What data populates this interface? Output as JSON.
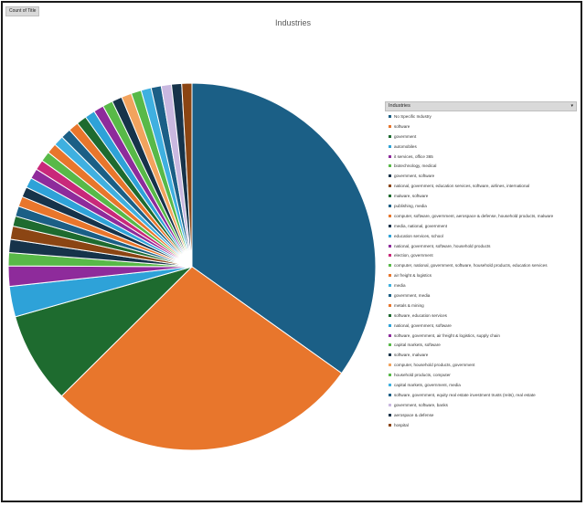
{
  "field_button": "Count of Title",
  "legend_header": "Industries",
  "chart_data": {
    "type": "pie",
    "title": "Industries",
    "legend_position": "right",
    "categories": [
      "No Specific Industry",
      "software",
      "government",
      "automobiles",
      "it services, office 365",
      "biotechnology, medical",
      "government, software",
      "national, government, education services, software, airlines, international",
      "malware, software",
      "publishing, media",
      "computer, software, government, aerospace & defense, household products, malware",
      "media, national, government",
      "education services, school",
      "national, government, software, household products",
      "election, government",
      "computer, national, government, software, household products, education services",
      "air freight & logistics",
      "media",
      "government, media",
      "metals & mining",
      "software, education services",
      "national, government, software",
      "software, government, air freight & logistics, supply chain",
      "capital markets, software",
      "software, malware",
      "computer, household products, government",
      "household products, computer",
      "capital markets, government, media",
      "software, government, equity real estate investment trusts (reits), real estate",
      "government, software, banks",
      "aerospace & defense",
      "hospital"
    ],
    "values": [
      39,
      31,
      9,
      3,
      2,
      1.3,
      1.3,
      1.3,
      1,
      1,
      1,
      1,
      1,
      1,
      1,
      1,
      1,
      1,
      1,
      1,
      1,
      1,
      1,
      1,
      1,
      1,
      1,
      1,
      1,
      1,
      1,
      1
    ],
    "colors": [
      "#1b5f86",
      "#e8762c",
      "#1e6b2f",
      "#2ea2d8",
      "#8e2b9b",
      "#58b948",
      "#16334a",
      "#8b4513",
      "#1e6b2f",
      "#1b5f86",
      "#e8762c",
      "#16334a",
      "#2ea2d8",
      "#8e2b9b",
      "#c9287a",
      "#58b948",
      "#e8762c",
      "#3fb0e0",
      "#1b5f86",
      "#e8762c",
      "#1e6b2f",
      "#2ea2d8",
      "#8e2b9b",
      "#58b948",
      "#16334a",
      "#f2a35e",
      "#58b948",
      "#3fb0e0",
      "#1b5f86",
      "#c9b8e0",
      "#16334a",
      "#8b4513"
    ]
  }
}
